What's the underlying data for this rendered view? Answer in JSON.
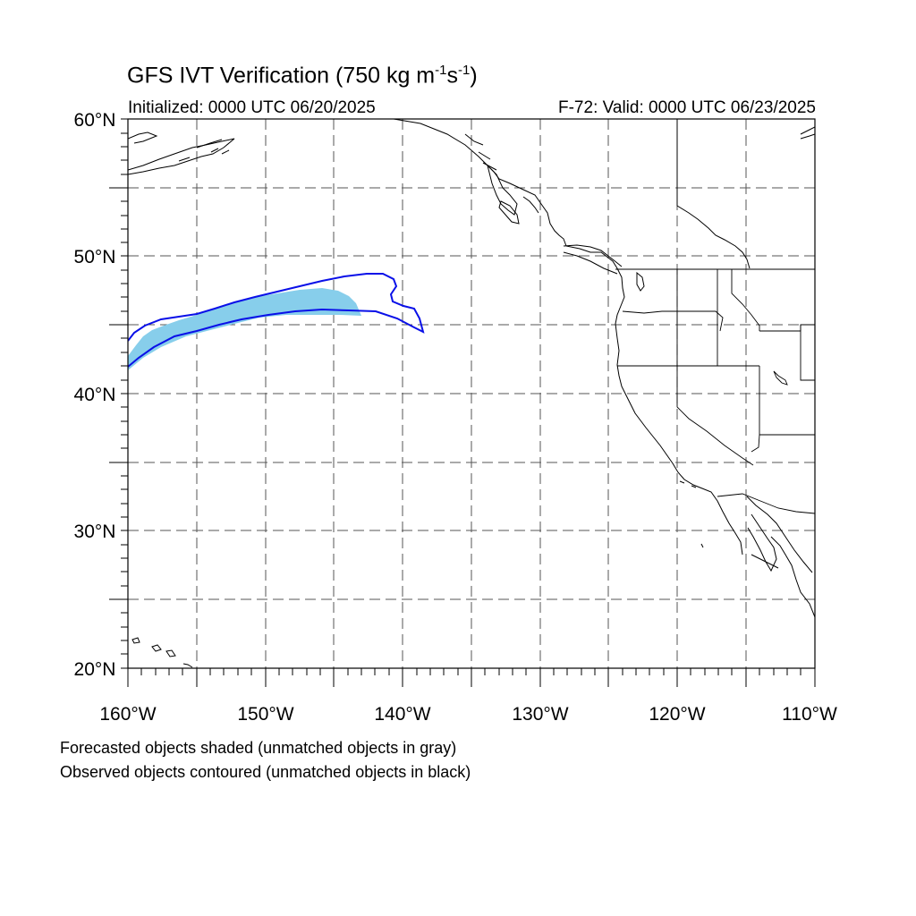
{
  "header": {
    "title_main": "GFS IVT Verification (750 kg m",
    "title_exp1": "-1",
    "title_mid": "s",
    "title_exp2": "-1",
    "title_end": ")",
    "initialized": "Initialized: 0000 UTC 06/20/2025",
    "valid": "F-72: Valid: 0000 UTC 06/23/2025"
  },
  "footer": {
    "line1": "Forecasted objects shaded (unmatched objects in gray)",
    "line2": "Observed objects contoured (unmatched objects in black)"
  },
  "axes": {
    "lat_labels": [
      "60°N",
      "50°N",
      "40°N",
      "30°N",
      "20°N"
    ],
    "lon_labels": [
      "160°W",
      "150°W",
      "140°W",
      "130°W",
      "120°W",
      "110°W"
    ]
  },
  "colors": {
    "forecast_shading": "#87ceeb",
    "observed_contour": "#0a10e8",
    "coastline": "#000000",
    "grid": "#555555"
  }
}
